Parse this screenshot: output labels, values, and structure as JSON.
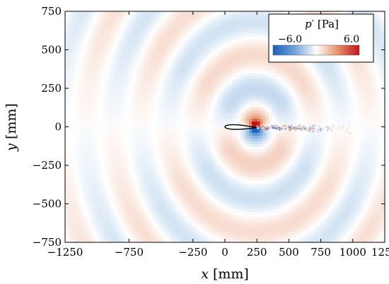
{
  "chart_data": {
    "type": "heatmap",
    "title": "",
    "xlabel": {
      "var": "x",
      "unit": " [mm]"
    },
    "ylabel": {
      "var": "y",
      "unit": " [mm]"
    },
    "xlim": [
      -1250,
      1250
    ],
    "ylim": [
      -750,
      750
    ],
    "x_ticks": [
      -1250,
      -750,
      -250,
      0,
      250,
      500,
      750,
      1000,
      1250
    ],
    "x_tick_labels": [
      "−1250",
      "−750",
      "−250",
      "0",
      "250",
      "500",
      "750",
      "1000",
      "1250"
    ],
    "y_ticks": [
      750,
      500,
      250,
      0,
      -250,
      -500,
      -750
    ],
    "y_tick_labels": [
      "750",
      "500",
      "250",
      "0",
      "−250",
      "−500",
      "−750"
    ],
    "grid": false,
    "colorbar": {
      "title_var": "p′",
      "title_unit": " [Pa]",
      "min": -6.0,
      "max": 6.0,
      "min_label": "−6.0",
      "max_label": "6.0",
      "colormap": [
        "#1f5fbf",
        "#6fa3d8",
        "#ffffff",
        "#e6906a",
        "#c0141e"
      ],
      "placement": "top-right"
    },
    "field": {
      "source": {
        "x": 240,
        "y": 0
      },
      "wavelength_mm": 430,
      "amplitude_pa": 0.75,
      "near_field_peak_pa": 4.0
    },
    "airfoil": {
      "leading_edge": {
        "x": 0,
        "y": 0
      },
      "trailing_edge": {
        "x": 250,
        "y": -5
      },
      "max_thickness_mm": 30
    },
    "wake": {
      "x_start": 250,
      "x_end": 1000
    }
  }
}
